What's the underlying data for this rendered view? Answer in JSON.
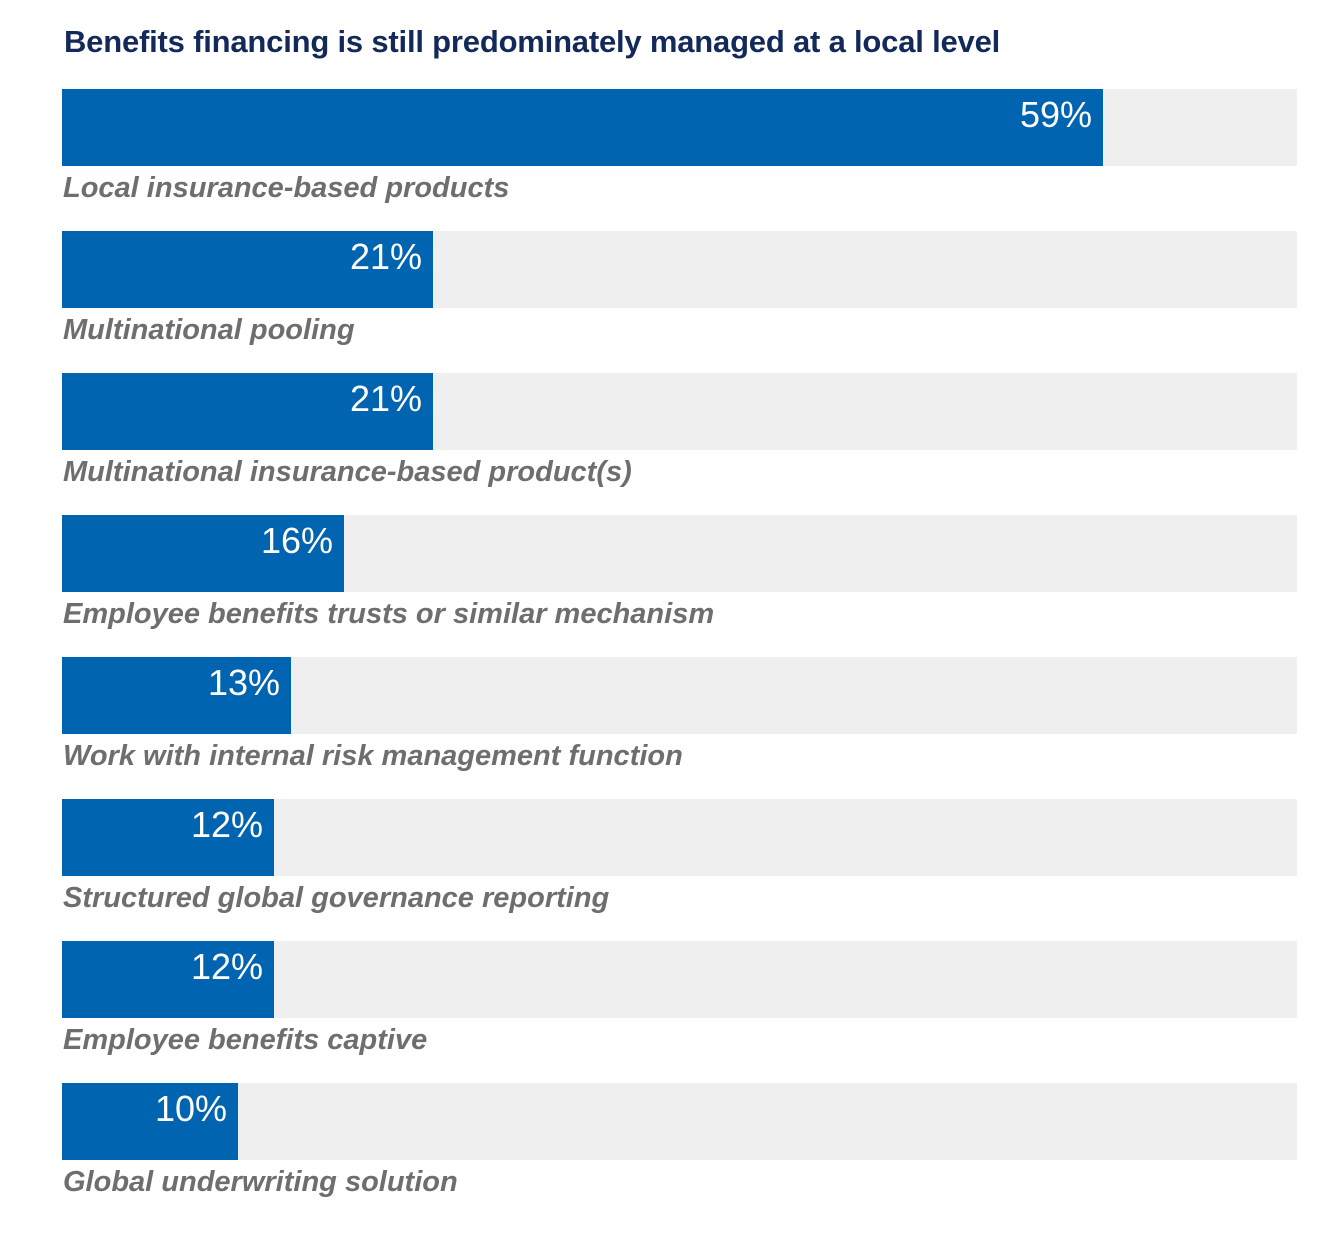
{
  "chart_data": {
    "type": "bar",
    "orientation": "horizontal",
    "title": "Benefits financing is still predominately managed at a local level",
    "xlabel": "",
    "ylabel": "",
    "xlim": [
      0,
      70
    ],
    "unit": "%",
    "colors": {
      "bar": "#0064b0",
      "track": "#f0eff0",
      "title": "#12295a",
      "label": "#6e6e6e"
    },
    "categories": [
      "Local insurance-based products",
      "Multinational pooling",
      "Multinational insurance-based product(s)",
      "Employee benefits trusts or similar mechanism",
      "Work with internal risk management function",
      "Structured global governance reporting",
      "Employee benefits captive",
      "Global underwriting solution"
    ],
    "values": [
      59,
      21,
      21,
      16,
      13,
      12,
      12,
      10
    ],
    "value_labels": [
      "59%",
      "21%",
      "21%",
      "16%",
      "13%",
      "12%",
      "12%",
      "10%"
    ]
  }
}
